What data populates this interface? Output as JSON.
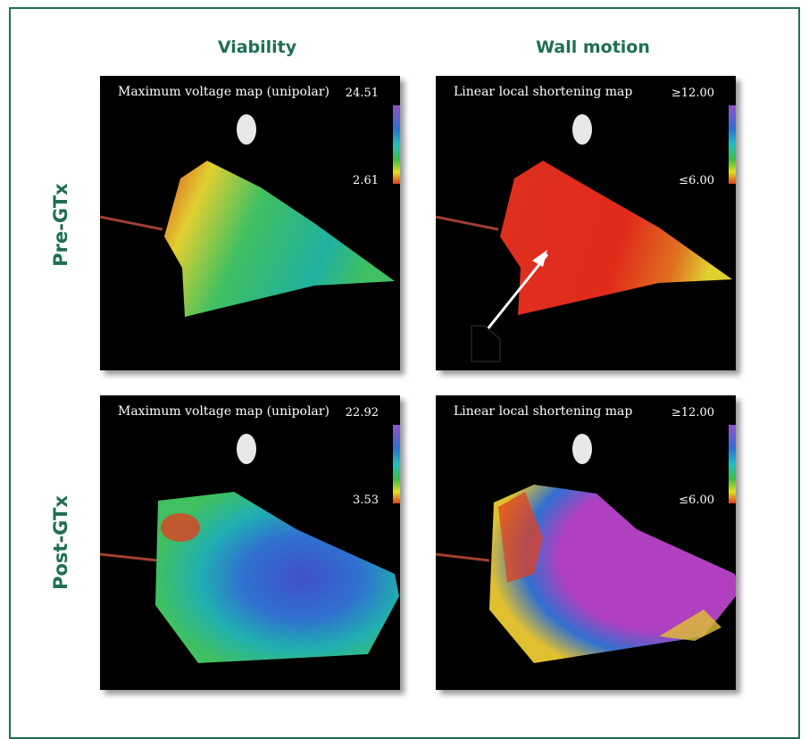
{
  "columns": [
    "Viability",
    "Wall motion"
  ],
  "rows": [
    "Pre-GTx",
    "Post-GTx"
  ],
  "panels": [
    {
      "title": "Maximum voltage map (unipolar)",
      "scale_max": "24.51",
      "scale_min": "2.61"
    },
    {
      "title": "Linear local shortening map",
      "scale_max": "≥12.00",
      "scale_min": "≤6.00"
    },
    {
      "title": "Maximum voltage map (unipolar)",
      "scale_max": "22.92",
      "scale_min": "3.53"
    },
    {
      "title": "Linear local shortening map",
      "scale_max": "≥12.00",
      "scale_min": "≤6.00"
    }
  ]
}
